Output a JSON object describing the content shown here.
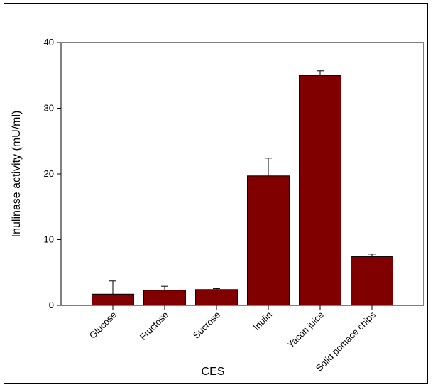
{
  "chart_data": {
    "type": "bar",
    "title": "",
    "xlabel": "CES",
    "ylabel": "Inulinase activity (mU/ml)",
    "categories": [
      "Glucose",
      "Fructose",
      "Sucrose",
      "Inulin",
      "Yacon juice",
      "Solid pomace chips"
    ],
    "values": [
      1.7,
      2.3,
      2.4,
      19.7,
      35.0,
      7.4
    ],
    "errors": [
      2.0,
      0.6,
      0.15,
      2.7,
      0.7,
      0.4
    ],
    "ylim": [
      0,
      40
    ],
    "yticks": [
      0,
      10,
      20,
      30,
      40
    ],
    "bar_color": "#800000",
    "grid": false,
    "legend": "none"
  }
}
